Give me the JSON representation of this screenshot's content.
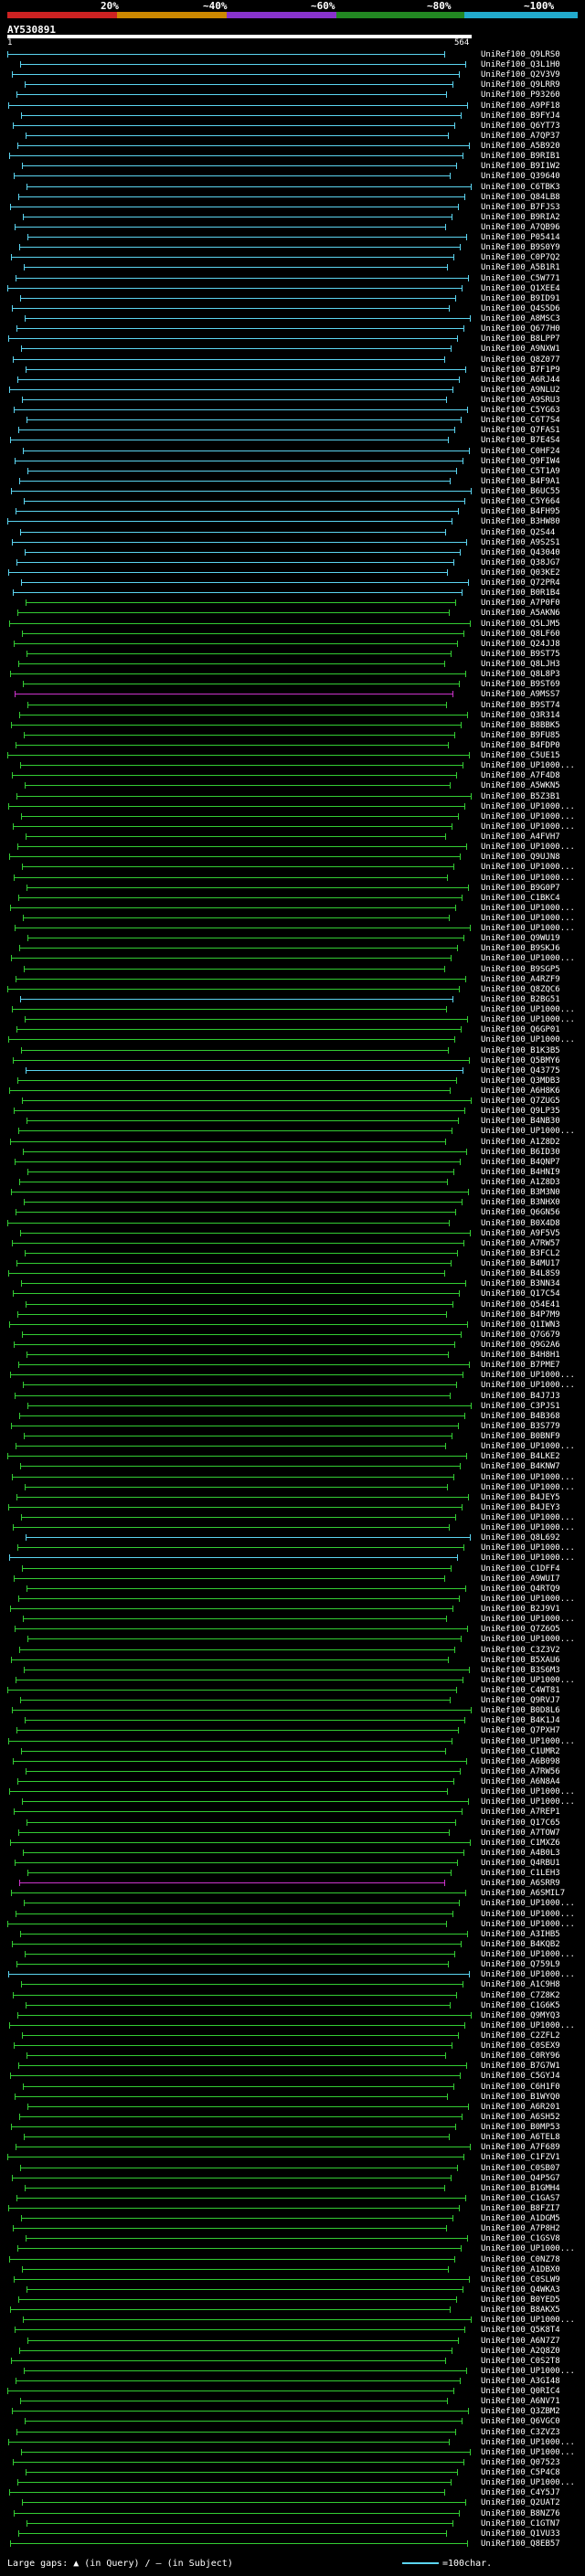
{
  "header": {
    "pct_labels": [
      "20%",
      "~40%",
      "~60%",
      "~80%",
      "~100%"
    ],
    "bands": [
      "#cc2222",
      "#cc8800",
      "#8833cc",
      "#228822",
      "#22aacc"
    ],
    "query_id": "AY530891",
    "query_start": "1",
    "query_end": "564"
  },
  "footer": {
    "legend": "Large gaps: ▲ (in Query) / – (in Subject)",
    "scale": "=100char."
  },
  "colors": {
    "blue": "#5bd4f0",
    "green": "#33cc33",
    "magenta": "#cc33cc"
  },
  "hits": [
    {
      "id": "UniRef100_Q9LRS0",
      "c": "blue"
    },
    {
      "id": "UniRef100_Q3L1H0",
      "c": "blue"
    },
    {
      "id": "UniRef100_Q2V3V9",
      "c": "blue"
    },
    {
      "id": "UniRef100_Q9LRR9",
      "c": "blue"
    },
    {
      "id": "UniRef100_P93260",
      "c": "blue"
    },
    {
      "id": "UniRef100_A9PF18",
      "c": "blue"
    },
    {
      "id": "UniRef100_B9FYJ4",
      "c": "blue"
    },
    {
      "id": "UniRef100_Q6YT73",
      "c": "blue"
    },
    {
      "id": "UniRef100_A7QP37",
      "c": "blue"
    },
    {
      "id": "UniRef100_A5B920",
      "c": "blue"
    },
    {
      "id": "UniRef100_B9RIB1",
      "c": "blue"
    },
    {
      "id": "UniRef100_B9I1W2",
      "c": "blue"
    },
    {
      "id": "UniRef100_Q39640",
      "c": "blue"
    },
    {
      "id": "UniRef100_C6TBK3",
      "c": "blue"
    },
    {
      "id": "UniRef100_Q84LB8",
      "c": "blue"
    },
    {
      "id": "UniRef100_B7FJS3",
      "c": "blue"
    },
    {
      "id": "UniRef100_B9RIA2",
      "c": "blue"
    },
    {
      "id": "UniRef100_A7QB96",
      "c": "blue"
    },
    {
      "id": "UniRef100_P05414",
      "c": "blue"
    },
    {
      "id": "UniRef100_B9S0Y9",
      "c": "blue"
    },
    {
      "id": "UniRef100_C0P7Q2",
      "c": "blue"
    },
    {
      "id": "UniRef100_A5B1R1",
      "c": "blue"
    },
    {
      "id": "UniRef100_C5W771",
      "c": "blue"
    },
    {
      "id": "UniRef100_Q1XEE4",
      "c": "blue"
    },
    {
      "id": "UniRef100_B9ID91",
      "c": "blue"
    },
    {
      "id": "UniRef100_Q4S5D6",
      "c": "blue"
    },
    {
      "id": "UniRef100_A8MSC3",
      "c": "blue"
    },
    {
      "id": "UniRef100_Q677H0",
      "c": "blue"
    },
    {
      "id": "UniRef100_B8LPP7",
      "c": "blue"
    },
    {
      "id": "UniRef100_A9NXW1",
      "c": "blue"
    },
    {
      "id": "UniRef100_Q8Z077",
      "c": "blue"
    },
    {
      "id": "UniRef100_B7F1P9",
      "c": "blue"
    },
    {
      "id": "UniRef100_A6RJ44",
      "c": "blue"
    },
    {
      "id": "UniRef100_A9NLU2",
      "c": "blue"
    },
    {
      "id": "UniRef100_A9SRU3",
      "c": "blue"
    },
    {
      "id": "UniRef100_C5YG63",
      "c": "blue"
    },
    {
      "id": "UniRef100_C6T7S4",
      "c": "blue"
    },
    {
      "id": "UniRef100_Q7FAS1",
      "c": "blue"
    },
    {
      "id": "UniRef100_B7E4S4",
      "c": "blue"
    },
    {
      "id": "UniRef100_C0HF24",
      "c": "blue"
    },
    {
      "id": "UniRef100_Q9FIW4",
      "c": "blue"
    },
    {
      "id": "UniRef100_C5T1A9",
      "c": "blue"
    },
    {
      "id": "UniRef100_B4F9A1",
      "c": "blue"
    },
    {
      "id": "UniRef100_B6UC55",
      "c": "blue"
    },
    {
      "id": "UniRef100_C5Y664",
      "c": "blue"
    },
    {
      "id": "UniRef100_B4FH95",
      "c": "blue"
    },
    {
      "id": "UniRef100_B3HW80",
      "c": "blue"
    },
    {
      "id": "UniRef100_Q2S44",
      "c": "blue"
    },
    {
      "id": "UniRef100_A9S2S1",
      "c": "blue"
    },
    {
      "id": "UniRef100_Q43040",
      "c": "blue"
    },
    {
      "id": "UniRef100_Q38JG7",
      "c": "blue"
    },
    {
      "id": "UniRef100_Q03KE2",
      "c": "blue"
    },
    {
      "id": "UniRef100_Q72PR4",
      "c": "blue"
    },
    {
      "id": "UniRef100_B0R1B4",
      "c": "blue"
    },
    {
      "id": "UniRef100_A7P0F0",
      "c": "green"
    },
    {
      "id": "UniRef100_A5AKN6",
      "c": "green"
    },
    {
      "id": "UniRef100_Q5LJM5",
      "c": "green"
    },
    {
      "id": "UniRef100_Q8LF60",
      "c": "green"
    },
    {
      "id": "UniRef100_Q24JJ8",
      "c": "green"
    },
    {
      "id": "UniRef100_B9ST75",
      "c": "green"
    },
    {
      "id": "UniRef100_Q8LJH3",
      "c": "green"
    },
    {
      "id": "UniRef100_Q8L8P3",
      "c": "green"
    },
    {
      "id": "UniRef100_B9ST69",
      "c": "green"
    },
    {
      "id": "UniRef100_A9MSS7",
      "c": "magenta"
    },
    {
      "id": "UniRef100_B9ST74",
      "c": "green"
    },
    {
      "id": "UniRef100_Q3R314",
      "c": "green"
    },
    {
      "id": "UniRef100_B8BBK5",
      "c": "green"
    },
    {
      "id": "UniRef100_B9FU85",
      "c": "green"
    },
    {
      "id": "UniRef100_B4FDP0",
      "c": "green"
    },
    {
      "id": "UniRef100_C5UE15",
      "c": "green"
    },
    {
      "id": "UniRef100_UP1000...",
      "c": "green"
    },
    {
      "id": "UniRef100_A7F4D8",
      "c": "green"
    },
    {
      "id": "UniRef100_A5WKN5",
      "c": "green"
    },
    {
      "id": "UniRef100_B5Z3B1",
      "c": "green"
    },
    {
      "id": "UniRef100_UP1000...",
      "c": "green"
    },
    {
      "id": "UniRef100_UP1000...",
      "c": "green"
    },
    {
      "id": "UniRef100_UP1000...",
      "c": "green"
    },
    {
      "id": "UniRef100_A4FVH7",
      "c": "green"
    },
    {
      "id": "UniRef100_UP1000...",
      "c": "green"
    },
    {
      "id": "UniRef100_Q9UJN8",
      "c": "green"
    },
    {
      "id": "UniRef100_UP1000...",
      "c": "green"
    },
    {
      "id": "UniRef100_UP1000...",
      "c": "green"
    },
    {
      "id": "UniRef100_B9G0P7",
      "c": "green"
    },
    {
      "id": "UniRef100_C1BKC4",
      "c": "green"
    },
    {
      "id": "UniRef100_UP1000...",
      "c": "green"
    },
    {
      "id": "UniRef100_UP1000...",
      "c": "green"
    },
    {
      "id": "UniRef100_UP1000...",
      "c": "green"
    },
    {
      "id": "UniRef100_Q9WU19",
      "c": "green"
    },
    {
      "id": "UniRef100_B9SKJ6",
      "c": "green"
    },
    {
      "id": "UniRef100_UP1000...",
      "c": "green"
    },
    {
      "id": "UniRef100_B9SGP5",
      "c": "green"
    },
    {
      "id": "UniRef100_A4RZF9",
      "c": "green"
    },
    {
      "id": "UniRef100_Q8ZQC6",
      "c": "green"
    },
    {
      "id": "UniRef100_B2BG51",
      "c": "blue"
    },
    {
      "id": "UniRef100_UP1000...",
      "c": "green"
    },
    {
      "id": "UniRef100_UP1000...",
      "c": "green"
    },
    {
      "id": "UniRef100_Q6GP01",
      "c": "green"
    },
    {
      "id": "UniRef100_UP1000...",
      "c": "green"
    },
    {
      "id": "UniRef100_B1K3B5",
      "c": "green"
    },
    {
      "id": "UniRef100_Q5BMY6",
      "c": "green"
    },
    {
      "id": "UniRef100_Q43775",
      "c": "blue"
    },
    {
      "id": "UniRef100_Q3MDB3",
      "c": "green"
    },
    {
      "id": "UniRef100_A6H8K6",
      "c": "green"
    },
    {
      "id": "UniRef100_Q7ZUG5",
      "c": "green"
    },
    {
      "id": "UniRef100_Q9LP35",
      "c": "green"
    },
    {
      "id": "UniRef100_B4NB30",
      "c": "green"
    },
    {
      "id": "UniRef100_UP1000...",
      "c": "green"
    },
    {
      "id": "UniRef100_A1Z8D2",
      "c": "green"
    },
    {
      "id": "UniRef100_B6ID30",
      "c": "green"
    },
    {
      "id": "UniRef100_B4QNP7",
      "c": "green"
    },
    {
      "id": "UniRef100_B4HNI9",
      "c": "green"
    },
    {
      "id": "UniRef100_A1Z8D3",
      "c": "green"
    },
    {
      "id": "UniRef100_B3M3N0",
      "c": "green"
    },
    {
      "id": "UniRef100_B3NHX0",
      "c": "green"
    },
    {
      "id": "UniRef100_Q6GN56",
      "c": "green"
    },
    {
      "id": "UniRef100_B0X4D8",
      "c": "green"
    },
    {
      "id": "UniRef100_A9F5V5",
      "c": "green"
    },
    {
      "id": "UniRef100_A7RW57",
      "c": "green"
    },
    {
      "id": "UniRef100_B3FCL2",
      "c": "green"
    },
    {
      "id": "UniRef100_B4MU17",
      "c": "green"
    },
    {
      "id": "UniRef100_B4L8S9",
      "c": "green"
    },
    {
      "id": "UniRef100_B3NN34",
      "c": "green"
    },
    {
      "id": "UniRef100_Q17C54",
      "c": "green"
    },
    {
      "id": "UniRef100_Q54E41",
      "c": "green"
    },
    {
      "id": "UniRef100_B4P7M9",
      "c": "green"
    },
    {
      "id": "UniRef100_Q1IWN3",
      "c": "green"
    },
    {
      "id": "UniRef100_Q7G679",
      "c": "green"
    },
    {
      "id": "UniRef100_Q9G2A6",
      "c": "green"
    },
    {
      "id": "UniRef100_B4H8H1",
      "c": "green"
    },
    {
      "id": "UniRef100_B7PME7",
      "c": "green"
    },
    {
      "id": "UniRef100_UP1000...",
      "c": "green"
    },
    {
      "id": "UniRef100_UP1000...",
      "c": "green"
    },
    {
      "id": "UniRef100_B4J7J3",
      "c": "green"
    },
    {
      "id": "UniRef100_C3PJS1",
      "c": "green"
    },
    {
      "id": "UniRef100_B4B368",
      "c": "green"
    },
    {
      "id": "UniRef100_B3S779",
      "c": "green"
    },
    {
      "id": "UniRef100_B0BNF9",
      "c": "green"
    },
    {
      "id": "UniRef100_UP1000...",
      "c": "green"
    },
    {
      "id": "UniRef100_B4LKE2",
      "c": "green"
    },
    {
      "id": "UniRef100_B4KNW7",
      "c": "green"
    },
    {
      "id": "UniRef100_UP1000...",
      "c": "green"
    },
    {
      "id": "UniRef100_UP1000...",
      "c": "green"
    },
    {
      "id": "UniRef100_B4JEY5",
      "c": "green"
    },
    {
      "id": "UniRef100_B4JEY3",
      "c": "green"
    },
    {
      "id": "UniRef100_UP1000...",
      "c": "green"
    },
    {
      "id": "UniRef100_UP1000...",
      "c": "green"
    },
    {
      "id": "UniRef100_Q8L692",
      "c": "blue"
    },
    {
      "id": "UniRef100_UP1000...",
      "c": "green"
    },
    {
      "id": "UniRef100_UP1000...",
      "c": "blue"
    },
    {
      "id": "UniRef100_C1DFF4",
      "c": "green"
    },
    {
      "id": "UniRef100_A9WUI7",
      "c": "green"
    },
    {
      "id": "UniRef100_Q4RTQ9",
      "c": "green"
    },
    {
      "id": "UniRef100_UP1000...",
      "c": "green"
    },
    {
      "id": "UniRef100_B2J9V1",
      "c": "green"
    },
    {
      "id": "UniRef100_UP1000...",
      "c": "green"
    },
    {
      "id": "UniRef100_Q7Z6O5",
      "c": "green"
    },
    {
      "id": "UniRef100_UP1000...",
      "c": "green"
    },
    {
      "id": "UniRef100_C3Z3V2",
      "c": "green"
    },
    {
      "id": "UniRef100_B5XAU6",
      "c": "green"
    },
    {
      "id": "UniRef100_B3S6M3",
      "c": "green"
    },
    {
      "id": "UniRef100_UP1000...",
      "c": "green"
    },
    {
      "id": "UniRef100_C4WT81",
      "c": "green"
    },
    {
      "id": "UniRef100_Q9RVJ7",
      "c": "green"
    },
    {
      "id": "UniRef100_B0D8L6",
      "c": "green"
    },
    {
      "id": "UniRef100_B4K1J4",
      "c": "green"
    },
    {
      "id": "UniRef100_Q7PXH7",
      "c": "green"
    },
    {
      "id": "UniRef100_UP1000...",
      "c": "green"
    },
    {
      "id": "UniRef100_C1UMR2",
      "c": "green"
    },
    {
      "id": "UniRef100_A6B098",
      "c": "green"
    },
    {
      "id": "UniRef100_A7RW56",
      "c": "green"
    },
    {
      "id": "UniRef100_A6N8A4",
      "c": "green"
    },
    {
      "id": "UniRef100_UP1000...",
      "c": "green"
    },
    {
      "id": "UniRef100_UP1000...",
      "c": "green"
    },
    {
      "id": "UniRef100_A7REP1",
      "c": "green"
    },
    {
      "id": "UniRef100_Q17C65",
      "c": "green"
    },
    {
      "id": "UniRef100_A7TOW7",
      "c": "green"
    },
    {
      "id": "UniRef100_C1MXZ6",
      "c": "green"
    },
    {
      "id": "UniRef100_A4B0L3",
      "c": "green"
    },
    {
      "id": "UniRef100_Q4RBU1",
      "c": "green"
    },
    {
      "id": "UniRef100_C1LEH3",
      "c": "green"
    },
    {
      "id": "UniRef100_A6SRR9",
      "c": "magenta"
    },
    {
      "id": "UniRef100_A6SMIL7",
      "c": "green"
    },
    {
      "id": "UniRef100_UP1000...",
      "c": "green"
    },
    {
      "id": "UniRef100_UP1000...",
      "c": "green"
    },
    {
      "id": "UniRef100_UP1000...",
      "c": "green"
    },
    {
      "id": "UniRef100_A3IHB5",
      "c": "green"
    },
    {
      "id": "UniRef100_B4KQB2",
      "c": "green"
    },
    {
      "id": "UniRef100_UP1000...",
      "c": "green"
    },
    {
      "id": "UniRef100_Q759L9",
      "c": "green"
    },
    {
      "id": "UniRef100_UP1000...",
      "c": "blue"
    },
    {
      "id": "UniRef100_A1C9H8",
      "c": "green"
    },
    {
      "id": "UniRef100_C7Z8K2",
      "c": "green"
    },
    {
      "id": "UniRef100_C1G6K5",
      "c": "green"
    },
    {
      "id": "UniRef100_Q9MYQ3",
      "c": "green"
    },
    {
      "id": "UniRef100_UP1000...",
      "c": "green"
    },
    {
      "id": "UniRef100_C2ZFL2",
      "c": "green"
    },
    {
      "id": "UniRef100_C0SEX9",
      "c": "green"
    },
    {
      "id": "UniRef100_C0RY96",
      "c": "green"
    },
    {
      "id": "UniRef100_B7G7W1",
      "c": "green"
    },
    {
      "id": "UniRef100_C5GYJ4",
      "c": "green"
    },
    {
      "id": "UniRef100_C6H1F0",
      "c": "green"
    },
    {
      "id": "UniRef100_B1WYQ0",
      "c": "green"
    },
    {
      "id": "UniRef100_A6R201",
      "c": "green"
    },
    {
      "id": "UniRef100_A6SH52",
      "c": "green"
    },
    {
      "id": "UniRef100_B0MP53",
      "c": "green"
    },
    {
      "id": "UniRef100_A6TEL8",
      "c": "green"
    },
    {
      "id": "UniRef100_A7F689",
      "c": "green"
    },
    {
      "id": "UniRef100_C1FZV1",
      "c": "green"
    },
    {
      "id": "UniRef100_C0SB07",
      "c": "green"
    },
    {
      "id": "UniRef100_Q4P5G7",
      "c": "green"
    },
    {
      "id": "UniRef100_B1GMH4",
      "c": "green"
    },
    {
      "id": "UniRef100_C1GAS7",
      "c": "green"
    },
    {
      "id": "UniRef100_B8FZI7",
      "c": "green"
    },
    {
      "id": "UniRef100_A1DGM5",
      "c": "green"
    },
    {
      "id": "UniRef100_A7P8H2",
      "c": "green"
    },
    {
      "id": "UniRef100_C1GSV8",
      "c": "green"
    },
    {
      "id": "UniRef100_UP1000...",
      "c": "green"
    },
    {
      "id": "UniRef100_C0NZ78",
      "c": "green"
    },
    {
      "id": "UniRef100_A1DBX0",
      "c": "green"
    },
    {
      "id": "UniRef100_C0SLW9",
      "c": "green"
    },
    {
      "id": "UniRef100_Q4WKA3",
      "c": "green"
    },
    {
      "id": "UniRef100_B0YED5",
      "c": "green"
    },
    {
      "id": "UniRef100_B8AKX5",
      "c": "green"
    },
    {
      "id": "UniRef100_UP1000...",
      "c": "green"
    },
    {
      "id": "UniRef100_Q5K8T4",
      "c": "green"
    },
    {
      "id": "UniRef100_A6N7Z7",
      "c": "green"
    },
    {
      "id": "UniRef100_A2Q8Z0",
      "c": "green"
    },
    {
      "id": "UniRef100_C0S2T8",
      "c": "green"
    },
    {
      "id": "UniRef100_UP1000...",
      "c": "green"
    },
    {
      "id": "UniRef100_A3GI48",
      "c": "green"
    },
    {
      "id": "UniRef100_Q0RIC4",
      "c": "green"
    },
    {
      "id": "UniRef100_A6NV71",
      "c": "green"
    },
    {
      "id": "UniRef100_Q3ZBM2",
      "c": "green"
    },
    {
      "id": "UniRef100_Q6VGC0",
      "c": "green"
    },
    {
      "id": "UniRef100_C3ZVZ3",
      "c": "green"
    },
    {
      "id": "UniRef100_UP1000...",
      "c": "green"
    },
    {
      "id": "UniRef100_UP1000...",
      "c": "green"
    },
    {
      "id": "UniRef100_Q07523",
      "c": "green"
    },
    {
      "id": "UniRef100_C5P4C8",
      "c": "green"
    },
    {
      "id": "UniRef100_UP1000...",
      "c": "green"
    },
    {
      "id": "UniRef100_C4Y5J7",
      "c": "green"
    },
    {
      "id": "UniRef100_Q2UAT2",
      "c": "green"
    },
    {
      "id": "UniRef100_B8NZ76",
      "c": "green"
    },
    {
      "id": "UniRef100_C1GTN7",
      "c": "green"
    },
    {
      "id": "UniRef100_Q1VU33",
      "c": "green"
    },
    {
      "id": "UniRef100_Q8EB57",
      "c": "green"
    }
  ]
}
